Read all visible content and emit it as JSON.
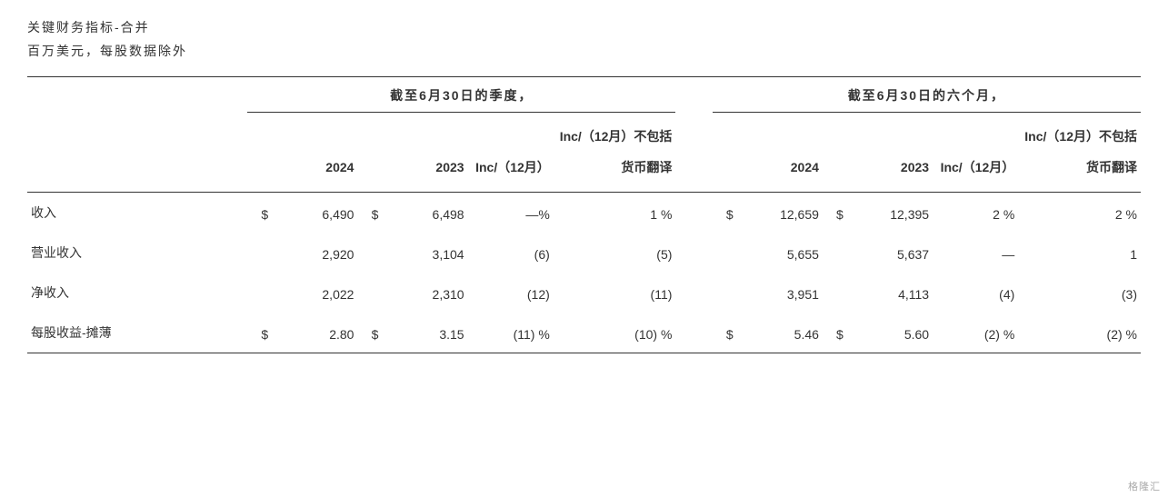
{
  "title": "关键财务指标-合并",
  "subtitle": "百万美元，每股数据除外",
  "section_headers": {
    "q": "截至6月30日的季度，",
    "h": "截至6月30日的六个月，"
  },
  "col_headers": {
    "y2024": "2024",
    "y2023": "2023",
    "inc": "Inc/（12月）",
    "inc_ex": "Inc/（12月）不包括货币翻译"
  },
  "rows": [
    {
      "label": "收入",
      "q_cur": "$",
      "q_2024": "6,490",
      "q_cur2": "$",
      "q_2023": "6,498",
      "q_inc": "—%",
      "q_ex": "1 %",
      "h_cur": "$",
      "h_2024": "12,659",
      "h_cur2": "$",
      "h_2023": "12,395",
      "h_inc": "2 %",
      "h_ex": "2 %"
    },
    {
      "label": "营业收入",
      "q_cur": "",
      "q_2024": "2,920",
      "q_cur2": "",
      "q_2023": "3,104",
      "q_inc": "(6)",
      "q_ex": "(5)",
      "h_cur": "",
      "h_2024": "5,655",
      "h_cur2": "",
      "h_2023": "5,637",
      "h_inc": "—",
      "h_ex": "1"
    },
    {
      "label": "净收入",
      "q_cur": "",
      "q_2024": "2,022",
      "q_cur2": "",
      "q_2023": "2,310",
      "q_inc": "(12)",
      "q_ex": "(11)",
      "h_cur": "",
      "h_2024": "3,951",
      "h_cur2": "",
      "h_2023": "4,113",
      "h_inc": "(4)",
      "h_ex": "(3)"
    },
    {
      "label": "每股收益-摊薄",
      "q_cur": "$",
      "q_2024": "2.80",
      "q_cur2": "$",
      "q_2023": "3.15",
      "q_inc": "(11) %",
      "q_ex": "(10) %",
      "h_cur": "$",
      "h_2024": "5.46",
      "h_cur2": "$",
      "h_2023": "5.60",
      "h_inc": "(2) %",
      "h_ex": "(2) %"
    }
  ],
  "watermark": "格隆汇"
}
